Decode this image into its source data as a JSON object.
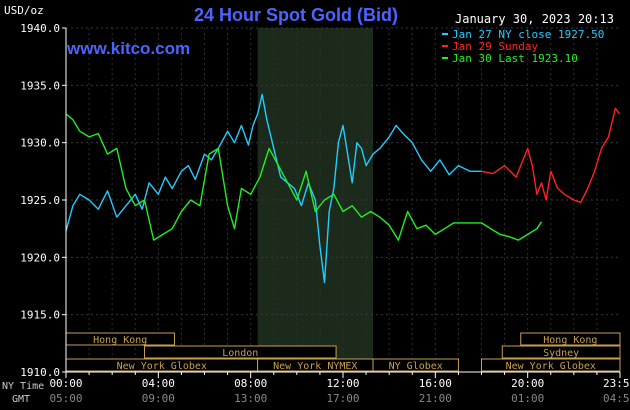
{
  "chart_data": {
    "type": "line",
    "title": "24 Hour Spot Gold (Bid)",
    "unit_label": "USD/oz",
    "watermark": "www.kitco.com",
    "timestamp": "January 30, 2023 20:13",
    "ylim": [
      1910,
      1940
    ],
    "y_ticks": [
      "1940.0",
      "1935.0",
      "1930.0",
      "1925.0",
      "1920.0",
      "1915.0",
      "1910.0"
    ],
    "xlim": [
      0,
      24
    ],
    "x_ticks_ny": [
      "00:00",
      "04:00",
      "08:00",
      "12:00",
      "16:00",
      "20:00",
      "23:59"
    ],
    "x_ticks_gmt": [
      "05:00",
      "09:00",
      "13:00",
      "17:00",
      "21:00",
      "01:00",
      "04:59"
    ],
    "x_tick_hours": [
      0,
      4,
      8,
      12,
      16,
      20,
      23.983
    ],
    "row_label_ny": "NY Time",
    "row_label_gmt": "GMT",
    "grid": true,
    "legend_position": "top-right",
    "shaded_range": [
      8.3,
      13.3
    ],
    "series": [
      {
        "name": "Jan 27 NY close 1927.50",
        "color": "#22ccff",
        "x": [
          0,
          0.3,
          0.6,
          1.0,
          1.4,
          1.8,
          2.2,
          2.6,
          3.0,
          3.3,
          3.6,
          4.0,
          4.3,
          4.6,
          5.0,
          5.3,
          5.6,
          6.0,
          6.3,
          6.6,
          7.0,
          7.3,
          7.6,
          7.9,
          8.1,
          8.3,
          8.5,
          8.7,
          9.0,
          9.3,
          9.6,
          9.9,
          10.2,
          10.5,
          10.8,
          11.0,
          11.2,
          11.4,
          11.6,
          11.8,
          12.0,
          12.2,
          12.4,
          12.6,
          12.8,
          13.0,
          13.3,
          13.6,
          14.0,
          14.3,
          14.6,
          15.0,
          15.4,
          15.8,
          16.2,
          16.6,
          17.0,
          17.5,
          18.0
        ],
        "values": [
          1922.3,
          1924.5,
          1925.5,
          1925.0,
          1924.2,
          1925.8,
          1923.5,
          1924.5,
          1925.5,
          1924.2,
          1926.5,
          1925.5,
          1927.0,
          1926.0,
          1927.5,
          1928.0,
          1926.8,
          1929.0,
          1928.5,
          1929.5,
          1931.0,
          1930.0,
          1931.5,
          1929.8,
          1931.5,
          1932.5,
          1934.2,
          1932.0,
          1929.5,
          1927.0,
          1926.5,
          1926.0,
          1924.5,
          1926.5,
          1925.0,
          1921.0,
          1917.8,
          1924.0,
          1926.0,
          1930.0,
          1931.5,
          1929.0,
          1926.5,
          1930.0,
          1929.5,
          1928.0,
          1929.0,
          1929.5,
          1930.5,
          1931.5,
          1930.8,
          1930.0,
          1928.5,
          1927.5,
          1928.5,
          1927.2,
          1928.0,
          1927.5,
          1927.5
        ]
      },
      {
        "name": "Jan 29 Sunday",
        "color": "#ff2222",
        "x": [
          18.0,
          18.5,
          19.0,
          19.5,
          19.8,
          20.0,
          20.2,
          20.4,
          20.6,
          20.8,
          21.0,
          21.3,
          21.6,
          22.0,
          22.3,
          22.6,
          22.9,
          23.2,
          23.5,
          23.8,
          23.98
        ],
        "values": [
          1927.5,
          1927.3,
          1928.0,
          1927.0,
          1928.5,
          1929.5,
          1928.0,
          1925.5,
          1926.5,
          1925.0,
          1927.5,
          1926.0,
          1925.5,
          1925.0,
          1924.8,
          1926.0,
          1927.5,
          1929.5,
          1930.5,
          1933.0,
          1932.5
        ]
      },
      {
        "name": "Jan 30 Last 1923.10",
        "color": "#22ee22",
        "x": [
          0,
          0.3,
          0.6,
          1.0,
          1.4,
          1.8,
          2.2,
          2.6,
          3.0,
          3.4,
          3.8,
          4.2,
          4.6,
          5.0,
          5.4,
          5.8,
          6.2,
          6.6,
          7.0,
          7.3,
          7.6,
          8.0,
          8.4,
          8.8,
          9.2,
          9.6,
          10.0,
          10.4,
          10.8,
          11.2,
          11.6,
          12.0,
          12.4,
          12.8,
          13.2,
          13.6,
          14.0,
          14.4,
          14.8,
          15.2,
          15.6,
          16.0,
          16.4,
          16.8,
          17.2,
          17.6,
          18.0,
          18.4,
          18.8,
          19.2,
          19.6,
          20.0,
          20.4,
          20.6
        ],
        "values": [
          1932.5,
          1932.0,
          1931.0,
          1930.5,
          1930.8,
          1929.0,
          1929.5,
          1926.0,
          1924.5,
          1925.0,
          1921.5,
          1922.0,
          1922.5,
          1924.0,
          1925.0,
          1924.5,
          1929.0,
          1929.5,
          1924.5,
          1922.5,
          1926.0,
          1925.5,
          1927.0,
          1929.5,
          1928.0,
          1926.5,
          1925.0,
          1927.5,
          1924.0,
          1925.0,
          1925.5,
          1924.0,
          1924.5,
          1923.5,
          1924.0,
          1923.5,
          1922.8,
          1921.5,
          1924.0,
          1922.5,
          1922.8,
          1922.0,
          1922.5,
          1923.0,
          1923.0,
          1923.0,
          1923.0,
          1922.5,
          1922.0,
          1921.8,
          1921.5,
          1922.0,
          1922.5,
          1923.1
        ]
      }
    ],
    "market_sessions": [
      {
        "label": "Hong Kong",
        "row": 0,
        "start": 0,
        "end": 4.7,
        "wrap_start": 19.7,
        "wrap_label": "Hong Kong"
      },
      {
        "label": "London",
        "row": 1,
        "start": 3.4,
        "end": 11.7,
        "wrap_start": 18.9,
        "wrap_label": "Sydney"
      },
      {
        "label": "New York Globex",
        "row": 2,
        "start": 0,
        "end": 8.3
      },
      {
        "label": "New York NYMEX",
        "row": 2,
        "start": 8.3,
        "end": 13.3
      },
      {
        "label": "NY Globex",
        "row": 2,
        "start": 13.3,
        "end": 17.0
      },
      {
        "label": "New York Globex",
        "row": 2,
        "start": 18.0,
        "end": 24.0
      }
    ]
  }
}
